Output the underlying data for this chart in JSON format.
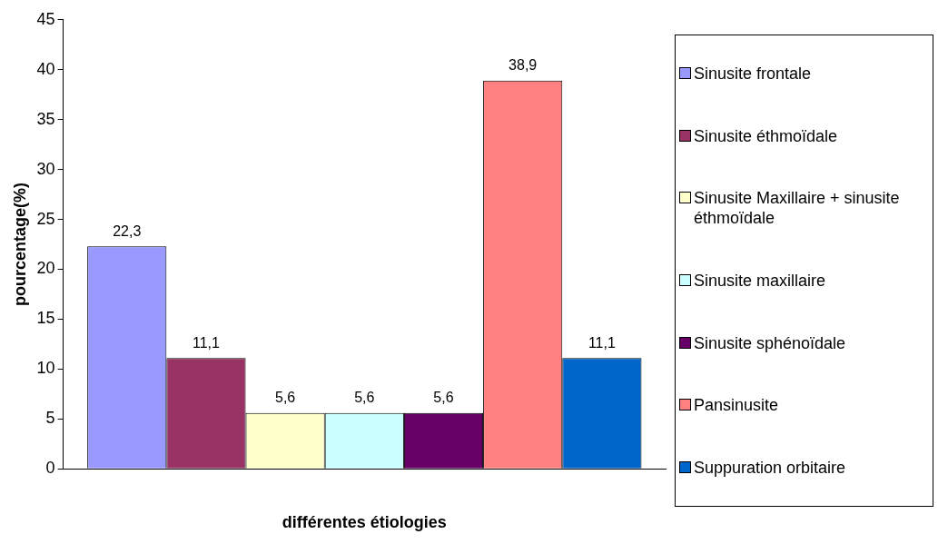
{
  "chart_data": {
    "type": "bar",
    "xlabel": "différentes étiologies",
    "ylabel": "pourcentage(%)",
    "categories": [
      null
    ],
    "series": [
      {
        "name": "Sinusite frontale",
        "color": "#9999ff",
        "values": [
          22.3
        ],
        "value_labels": [
          "22,3"
        ]
      },
      {
        "name": "Sinusite éthmoïdale",
        "color": "#993366",
        "values": [
          11.1
        ],
        "value_labels": [
          "11,1"
        ]
      },
      {
        "name": "Sinusite Maxillaire + sinusite éthmoïdale",
        "color": "#ffffcc",
        "values": [
          5.6
        ],
        "value_labels": [
          "5,6"
        ]
      },
      {
        "name": "Sinusite maxillaire",
        "color": "#ccffff",
        "values": [
          5.6
        ],
        "value_labels": [
          "5,6"
        ]
      },
      {
        "name": "Sinusite sphénoïdale",
        "color": "#660066",
        "values": [
          5.6
        ],
        "value_labels": [
          "5,6"
        ]
      },
      {
        "name": "Pansinusite",
        "color": "#ff8080",
        "values": [
          38.9
        ],
        "value_labels": [
          "38,9"
        ]
      },
      {
        "name": "Suppuration  orbitaire",
        "color": "#0066cc",
        "values": [
          11.1
        ],
        "value_labels": [
          "11,1"
        ]
      }
    ],
    "ylim": [
      0,
      45
    ],
    "yticks": [
      0,
      5,
      10,
      15,
      20,
      25,
      30,
      35,
      40,
      45
    ],
    "grid": false,
    "legend": "right"
  }
}
